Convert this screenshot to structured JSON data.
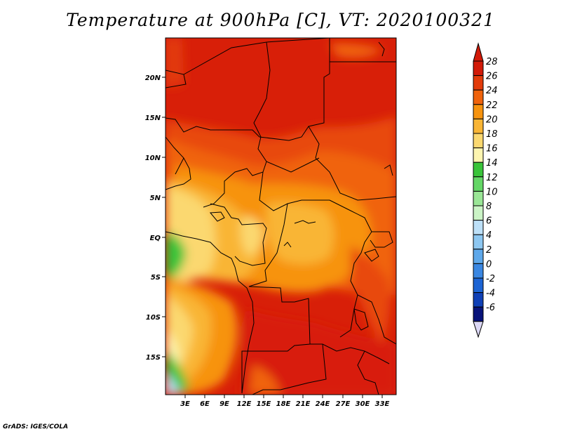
{
  "title": "Temperature at 900hPa [C], VT: 2020100321",
  "credit": "GrADS: IGES/COLA",
  "map": {
    "lat_labels": [
      "20N",
      "15N",
      "10N",
      "5N",
      "EQ",
      "5S",
      "10S",
      "15S"
    ],
    "lon_labels": [
      "3E",
      "6E",
      "9E",
      "12E",
      "15E",
      "18E",
      "21E",
      "24E",
      "27E",
      "30E",
      "33E"
    ]
  },
  "colorbar": {
    "labels": [
      "28",
      "26",
      "24",
      "22",
      "20",
      "18",
      "16",
      "14",
      "12",
      "10",
      "8",
      "6",
      "4",
      "2",
      "0",
      "-2",
      "-4",
      "-6"
    ],
    "colors": [
      "#d21a08",
      "#e33b0a",
      "#f0630c",
      "#f7930e",
      "#f9b535",
      "#fbd870",
      "#fdf5b0",
      "#39c43a",
      "#64d766",
      "#9ae696",
      "#cbf4c6",
      "#bde0f8",
      "#8dc7f1",
      "#5ea8ea",
      "#3a87e2",
      "#1c64d4",
      "#0f40b6",
      "#08137a"
    ],
    "top_color": "#d21a08",
    "bottom_color": "#dcd8f5"
  }
}
